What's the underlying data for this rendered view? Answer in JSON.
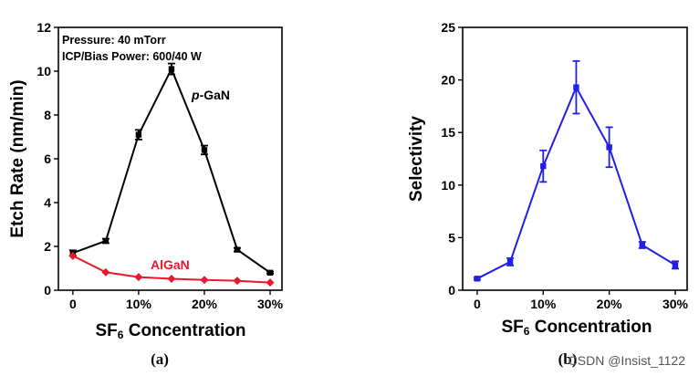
{
  "chart_data": [
    {
      "type": "line",
      "panel_label": "(a)",
      "xlabel_prefix": "SF",
      "xlabel_sub": "6",
      "xlabel_suffix": " Concentration",
      "ylabel": "Etch Rate (nm/min)",
      "x": [
        0,
        5,
        10,
        15,
        20,
        25,
        30
      ],
      "xticks": [
        0,
        10,
        20,
        30
      ],
      "xtick_labels": [
        "0",
        "10%",
        "20%",
        "30%"
      ],
      "xlim": [
        -2.2,
        31.8
      ],
      "ylim": [
        0,
        12
      ],
      "yticks": [
        0,
        2,
        4,
        6,
        8,
        10,
        12
      ],
      "annotations": [
        "Pressure: 40 mTorr",
        "ICP/Bias Power: 600/40 W"
      ],
      "series": [
        {
          "name_prefix": "p",
          "name_suffix": "-GaN",
          "color": "#000000",
          "marker": "square",
          "values": [
            1.7,
            2.25,
            7.1,
            10.1,
            6.4,
            1.85,
            0.8
          ],
          "errors": [
            0.12,
            0.1,
            0.22,
            0.25,
            0.2,
            0.08,
            0.05
          ]
        },
        {
          "name": "AlGaN",
          "color": "#e8192c",
          "marker": "diamond",
          "values": [
            1.57,
            0.82,
            0.6,
            0.52,
            0.47,
            0.43,
            0.35
          ],
          "errors": [
            0,
            0,
            0,
            0,
            0,
            0,
            0
          ]
        }
      ]
    },
    {
      "type": "line",
      "panel_label": "(b)",
      "xlabel_prefix": "SF",
      "xlabel_sub": "6",
      "xlabel_suffix": " Concentration",
      "ylabel": "Selectivity",
      "x": [
        0,
        5,
        10,
        15,
        20,
        25,
        30
      ],
      "xticks": [
        0,
        10,
        20,
        30
      ],
      "xtick_labels": [
        "0",
        "10%",
        "20%",
        "30%"
      ],
      "xlim": [
        -2.2,
        31.8
      ],
      "ylim": [
        0,
        25
      ],
      "yticks": [
        0,
        5,
        10,
        15,
        20,
        25
      ],
      "series": [
        {
          "name": "Selectivity",
          "color": "#1f1fe6",
          "marker": "square",
          "values": [
            1.1,
            2.7,
            11.8,
            19.3,
            13.6,
            4.3,
            2.4
          ],
          "errors": [
            0.1,
            0.35,
            1.5,
            2.5,
            1.9,
            0.3,
            0.35
          ]
        }
      ]
    }
  ],
  "watermark": "CSDN @Insist_1122"
}
